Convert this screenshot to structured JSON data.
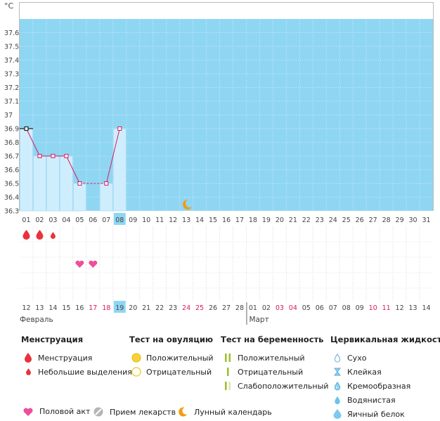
{
  "chart_data": {
    "type": "line",
    "ylabel": "°C",
    "ylim": [
      36.3,
      37.7
    ],
    "yticks": [
      "37.6",
      "37.5",
      "37.4",
      "37.3",
      "37.2",
      "37.1",
      "37",
      "36.9",
      "36.8",
      "36.7",
      "36.6",
      "36.5",
      "36.4",
      "36.3"
    ],
    "cycle_days": [
      "01",
      "02",
      "03",
      "04",
      "05",
      "06",
      "07",
      "08",
      "09",
      "10",
      "11",
      "12",
      "13",
      "14",
      "15",
      "16",
      "17",
      "18",
      "19",
      "20",
      "21",
      "22",
      "23",
      "24",
      "25",
      "26",
      "27",
      "28",
      "29",
      "30",
      "31"
    ],
    "current_day_index": 7,
    "temperatures": [
      36.9,
      36.7,
      36.7,
      36.7,
      36.5,
      null,
      36.5,
      36.9
    ],
    "calendar_dates": [
      "12",
      "13",
      "14",
      "15",
      "16",
      "17",
      "18",
      "19",
      "20",
      "21",
      "22",
      "23",
      "24",
      "25",
      "26",
      "27",
      "28",
      "01",
      "02",
      "03",
      "04",
      "05",
      "06",
      "07",
      "08",
      "09",
      "10",
      "11",
      "12",
      "13",
      "14"
    ],
    "red_date_indices": [
      5,
      6,
      12,
      13,
      19,
      20,
      26,
      27
    ],
    "current_date_index": 7,
    "month_labels": [
      {
        "label": "Февраль",
        "start_index": 0
      },
      {
        "label": "Март",
        "start_index": 17
      }
    ],
    "moon_day_index": 12,
    "menstruation": [
      {
        "day_index": 0,
        "type": "heavy"
      },
      {
        "day_index": 1,
        "type": "heavy"
      },
      {
        "day_index": 2,
        "type": "light"
      }
    ],
    "intercourse_day_indices": [
      4,
      5
    ]
  },
  "colors": {
    "band": "#8fd6f3",
    "bar_fill": "#cfeefd",
    "bar_stroke": "#a9dcf4",
    "line": "#d81b60",
    "highlight": "#8fd6f3",
    "drop": "#e8333a",
    "heart": "#ee4e9c",
    "moon": "#f39c12",
    "ov_positive": "#f7d33b",
    "preg_positive": "#9bbf2e"
  },
  "legend": {
    "menstruation": {
      "title": "Менструация",
      "items": [
        {
          "label": "Менструация",
          "icon": "drop-icon"
        },
        {
          "label": "Небольшие выделения",
          "icon": "small-drop-icon"
        }
      ]
    },
    "ovulation": {
      "title": "Тест на овуляцию",
      "items": [
        {
          "label": "Положительный",
          "icon": "filled-circle-icon"
        },
        {
          "label": "Отрицательный",
          "icon": "empty-circle-icon"
        }
      ]
    },
    "pregnancy": {
      "title": "Тест на беременность",
      "items": [
        {
          "label": "Положительный",
          "icon": "double-line-icon"
        },
        {
          "label": "Отрицательный",
          "icon": "single-line-icon"
        },
        {
          "label": "Слабоположительный",
          "icon": "faint-line-icon"
        }
      ]
    },
    "cervical": {
      "title": "Цервикальная жидкость",
      "items": [
        {
          "label": "Сухо",
          "icon": "outline-drop-icon"
        },
        {
          "label": "Клейкая",
          "icon": "hourglass-icon"
        },
        {
          "label": "Кремообразная",
          "icon": "cream-drop-icon"
        },
        {
          "label": "Водянистая",
          "icon": "water-drop-icon"
        },
        {
          "label": "Яичный белок",
          "icon": "egg-white-drop-icon"
        }
      ]
    },
    "bottom": [
      {
        "label": "Половой акт",
        "icon": "heart-icon"
      },
      {
        "label": "Прием лекарств",
        "icon": "pill-icon"
      },
      {
        "label": "Лунный календарь",
        "icon": "moon-icon"
      }
    ]
  }
}
